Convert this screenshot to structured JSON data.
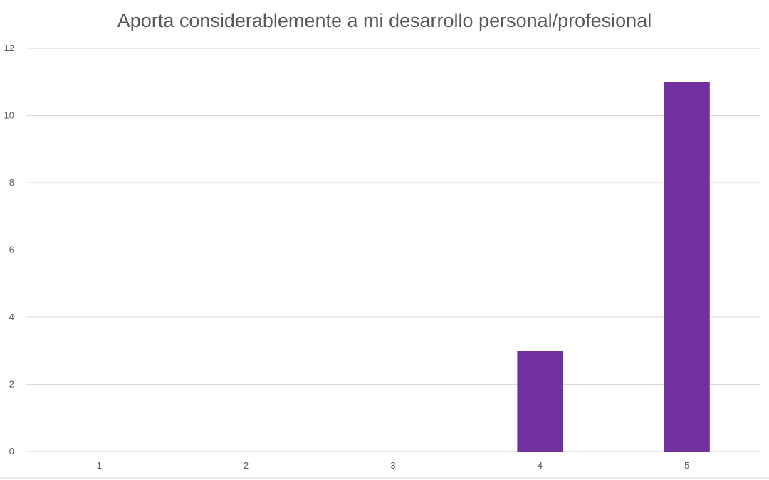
{
  "chart_data": {
    "type": "bar",
    "title": "Aporta considerablemente a mi desarrollo personal/profesional",
    "categories": [
      "1",
      "2",
      "3",
      "4",
      "5"
    ],
    "values": [
      0,
      0,
      0,
      3,
      11
    ],
    "ylim": [
      0,
      12
    ],
    "yticks": [
      "0",
      "2",
      "4",
      "6",
      "8",
      "10",
      "12"
    ],
    "grid": true,
    "legend": "none",
    "colors": {
      "bar": "#70309f",
      "grid": "#d9d9d9",
      "text": "#595959"
    }
  }
}
